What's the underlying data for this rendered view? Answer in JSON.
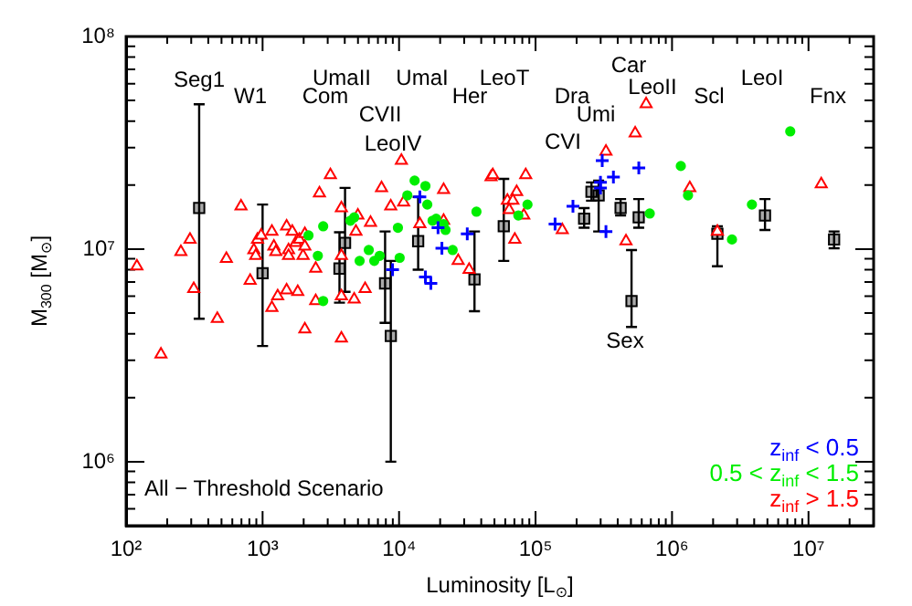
{
  "chart_data": {
    "type": "scatter",
    "xlabel": "Luminosity [L$_{⊙}$]",
    "ylabel": "M$_{300}$ [M$_{⊙}$]",
    "log": "xy",
    "grid": false,
    "legend": "bottom right",
    "xlim": [
      100,
      30000000
    ],
    "ylim": [
      500000,
      100000000
    ],
    "xticks": [
      {
        "value": 100,
        "label": "10²"
      },
      {
        "value": 200,
        "label": null
      },
      {
        "value": 300,
        "label": null
      },
      {
        "value": 400,
        "label": null
      },
      {
        "value": 500,
        "label": null
      },
      {
        "value": 600,
        "label": null
      },
      {
        "value": 700,
        "label": null
      },
      {
        "value": 800,
        "label": null
      },
      {
        "value": 900,
        "label": null
      },
      {
        "value": 1000,
        "label": "10³"
      },
      {
        "value": 2000,
        "label": null
      },
      {
        "value": 3000,
        "label": null
      },
      {
        "value": 4000,
        "label": null
      },
      {
        "value": 5000,
        "label": null
      },
      {
        "value": 6000,
        "label": null
      },
      {
        "value": 7000,
        "label": null
      },
      {
        "value": 8000,
        "label": null
      },
      {
        "value": 9000,
        "label": null
      },
      {
        "value": 10000,
        "label": "10⁴"
      },
      {
        "value": 20000,
        "label": null
      },
      {
        "value": 30000,
        "label": null
      },
      {
        "value": 40000,
        "label": null
      },
      {
        "value": 50000,
        "label": null
      },
      {
        "value": 60000,
        "label": null
      },
      {
        "value": 70000,
        "label": null
      },
      {
        "value": 80000,
        "label": null
      },
      {
        "value": 90000,
        "label": null
      },
      {
        "value": 100000,
        "label": "10⁵"
      },
      {
        "value": 200000,
        "label": null
      },
      {
        "value": 300000,
        "label": null
      },
      {
        "value": 400000,
        "label": null
      },
      {
        "value": 500000,
        "label": null
      },
      {
        "value": 600000,
        "label": null
      },
      {
        "value": 700000,
        "label": null
      },
      {
        "value": 800000,
        "label": null
      },
      {
        "value": 900000,
        "label": null
      },
      {
        "value": 1000000,
        "label": "10⁶"
      },
      {
        "value": 2000000,
        "label": null
      },
      {
        "value": 3000000,
        "label": null
      },
      {
        "value": 4000000,
        "label": null
      },
      {
        "value": 5000000,
        "label": null
      },
      {
        "value": 6000000,
        "label": null
      },
      {
        "value": 7000000,
        "label": null
      },
      {
        "value": 8000000,
        "label": null
      },
      {
        "value": 9000000,
        "label": null
      },
      {
        "value": 10000000,
        "label": "10⁷"
      },
      {
        "value": 20000000,
        "label": null
      }
    ],
    "yticks": [
      {
        "value": 600000,
        "label": null
      },
      {
        "value": 700000,
        "label": null
      },
      {
        "value": 800000,
        "label": null
      },
      {
        "value": 900000,
        "label": null
      },
      {
        "value": 1000000,
        "label": "10⁶"
      },
      {
        "value": 2000000,
        "label": null
      },
      {
        "value": 3000000,
        "label": null
      },
      {
        "value": 4000000,
        "label": null
      },
      {
        "value": 5000000,
        "label": null
      },
      {
        "value": 6000000,
        "label": null
      },
      {
        "value": 7000000,
        "label": null
      },
      {
        "value": 8000000,
        "label": null
      },
      {
        "value": 9000000,
        "label": null
      },
      {
        "value": 10000000,
        "label": "10⁷"
      },
      {
        "value": 20000000,
        "label": null
      },
      {
        "value": 30000000,
        "label": null
      },
      {
        "value": 40000000,
        "label": null
      },
      {
        "value": 50000000,
        "label": null
      },
      {
        "value": 60000000,
        "label": null
      },
      {
        "value": 70000000,
        "label": null
      },
      {
        "value": 80000000,
        "label": null
      },
      {
        "value": 90000000,
        "label": null
      },
      {
        "value": 100000000,
        "label": "10⁸"
      }
    ],
    "series": [
      {
        "name": "z$_{inf}$ < 0.5",
        "color": "#0000ff",
        "marker": "cross",
        "x": [
          14200,
          19300,
          20600,
          15600,
          17100,
          31600,
          8960,
          308000,
          299000,
          299000,
          372000,
          571000,
          188000,
          139000,
          328000
        ],
        "values": [
          17600000,
          12600000,
          10100000,
          7400000,
          6900000,
          11800000,
          8000000,
          26100000,
          20600000,
          19400000,
          21800000,
          24100000,
          15900000,
          13100000,
          12100000
        ]
      },
      {
        "name": "0.5 < z$_{inf}$ < 1.5",
        "color": "#00ee00",
        "marker": "circle",
        "x": [
          2170,
          5140,
          6580,
          7210,
          10100,
          9810,
          11500,
          13000,
          15600,
          16100,
          18700,
          21200,
          21900,
          24700,
          36900,
          4400,
          4690,
          6000,
          2780,
          2540,
          17600,
          87300,
          74800,
          687000,
          1160000,
          1310000,
          2750000,
          3850000,
          7350000,
          2780
        ],
        "values": [
          11600000,
          8800000,
          8800000,
          9300000,
          9100000,
          12600000,
          17900000,
          21000000,
          19800000,
          16200000,
          13900000,
          13100000,
          12300000,
          9900000,
          15000000,
          13600000,
          14100000,
          9900000,
          12800000,
          9300000,
          13600000,
          16200000,
          14400000,
          14700000,
          24600000,
          17900000,
          11100000,
          16200000,
          35800000,
          5700000
        ]
      },
      {
        "name": "z$_{inf}$ > 1.5",
        "color": "#ff0000",
        "marker": "triangle",
        "x": [
          120,
          294,
          252,
          543,
          695,
          811,
          918,
          976,
          863,
          890,
          1170,
          1210,
          1250,
          1500,
          1550,
          1650,
          1750,
          1860,
          1980,
          2040,
          2040,
          1550,
          2450,
          2610,
          3140,
          3780,
          3780,
          4990,
          4830,
          6180,
          7440,
          8690,
          10400,
          10800,
          14200,
          21200,
          21200,
          27100,
          32600,
          47200,
          62200,
          1290,
          1500,
          1810,
          2450,
          3780,
          4690,
          5640,
          313,
          466,
          180,
          1170,
          2040,
          3780,
          48600,
          84700,
          72700,
          68200,
          64100,
          82000,
          70500,
          157000,
          328000,
          537000,
          646000,
          1350000,
          460000,
          2150000,
          12400000
        ],
        "values": [
          8300000,
          11100000,
          9700000,
          9000000,
          15900000,
          7100000,
          11100000,
          11600000,
          9900000,
          9300000,
          12100000,
          10300000,
          9700000,
          12800000,
          9900000,
          12100000,
          10700000,
          11100000,
          9300000,
          11800000,
          10300000,
          9300000,
          8100000,
          18300000,
          22300000,
          15600000,
          9300000,
          14400000,
          12100000,
          13300000,
          19400000,
          15900000,
          26100000,
          16600000,
          13100000,
          19000000,
          13600000,
          8800000,
          8000000,
          21800000,
          16900000,
          6000000,
          6400000,
          6300000,
          5700000,
          6000000,
          5800000,
          6500000,
          6500000,
          4700000,
          3200000,
          5300000,
          4200000,
          3800000,
          22300000,
          22300000,
          18600000,
          16900000,
          15300000,
          14400000,
          11100000,
          12300000,
          28800000,
          35100000,
          48100000,
          19400000,
          10900000,
          12100000,
          20200000
        ]
      },
      {
        "color": "#000000",
        "marker": "square",
        "x": [
          343,
          1000,
          3660,
          4020,
          7900,
          8700,
          13800,
          35700,
          58500,
          227000,
          257000,
          290000,
          420000,
          505000,
          570000,
          2150000,
          4800000,
          15400000
        ],
        "values": [
          15600000,
          7700000,
          8100000,
          10700000,
          6900000,
          3900000,
          10900000,
          7200000,
          12800000,
          13900000,
          18600000,
          17900000,
          15600000,
          5700000,
          14100000,
          11800000,
          14400000,
          11100000
        ],
        "errors": [
          [
            4700000,
            48000000
          ],
          [
            3500000,
            16200000
          ],
          [
            5600000,
            12000000
          ],
          [
            6300000,
            19400000
          ],
          [
            4500000,
            12100000
          ],
          [
            1000000,
            8800000
          ],
          [
            8000000,
            17600000
          ],
          [
            5100000,
            12100000
          ],
          [
            8800000,
            21400000
          ],
          [
            12600000,
            15600000
          ],
          [
            16900000,
            20600000
          ],
          [
            12100000,
            21000000
          ],
          [
            14400000,
            17200000
          ],
          [
            4300000,
            9900000
          ],
          [
            12600000,
            17200000
          ],
          [
            8300000,
            12800000
          ],
          [
            12300000,
            17200000
          ],
          [
            10100000,
            12100000
          ]
        ]
      }
    ],
    "annotations": [
      "Seg1",
      "W1",
      "Com",
      "UmaII",
      "CVII",
      "LeoIV",
      "UmaI",
      "Her",
      "LeoT",
      "Dra",
      "Umi",
      "CVI",
      "Car",
      "LeoII",
      "Scl",
      "LeoI",
      "Fnx",
      "Sex",
      "All − Threshold Scenario"
    ]
  }
}
